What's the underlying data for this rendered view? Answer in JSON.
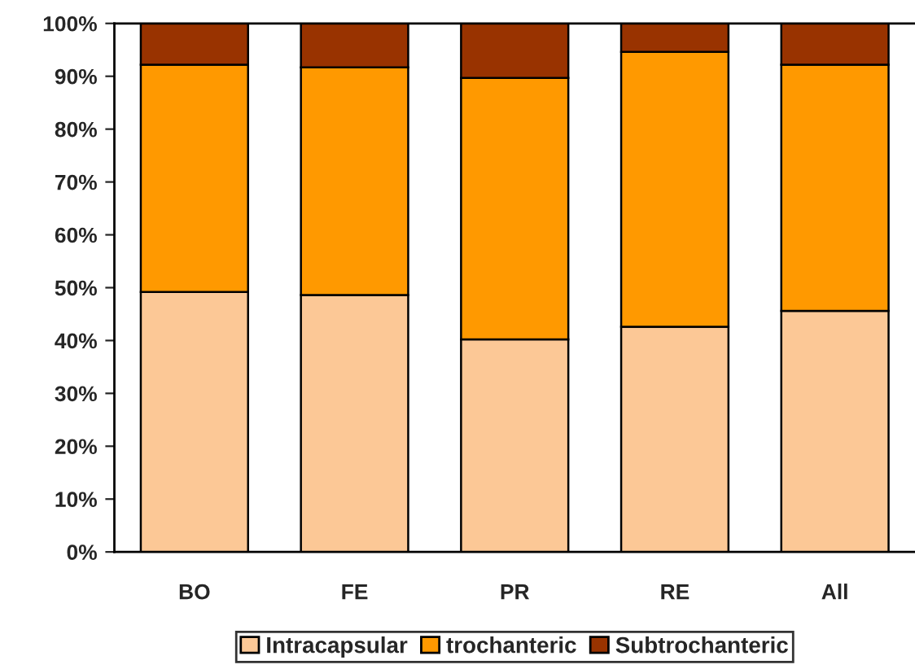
{
  "chart_data": {
    "type": "bar",
    "stacked": true,
    "categories": [
      "BO",
      "FE",
      "PR",
      "RE",
      "All"
    ],
    "series": [
      {
        "name": "Intracapsular",
        "color": "#fcc896",
        "values": [
          49.2,
          48.6,
          40.2,
          42.6,
          45.6
        ]
      },
      {
        "name": "trochanteric",
        "color": "#ff9900",
        "values": [
          43.0,
          43.1,
          49.5,
          52.0,
          46.6
        ]
      },
      {
        "name": "Subtrochanteric",
        "color": "#993300",
        "values": [
          7.8,
          8.3,
          10.3,
          5.4,
          7.8
        ]
      }
    ],
    "ylim": [
      0,
      100
    ],
    "yticks": [
      {
        "value": 0,
        "label": "0%"
      },
      {
        "value": 10,
        "label": "10%"
      },
      {
        "value": 20,
        "label": "20%"
      },
      {
        "value": 30,
        "label": "30%"
      },
      {
        "value": 40,
        "label": "40%"
      },
      {
        "value": 50,
        "label": "50%"
      },
      {
        "value": 60,
        "label": "60%"
      },
      {
        "value": 70,
        "label": "70%"
      },
      {
        "value": 80,
        "label": "80%"
      },
      {
        "value": 90,
        "label": "90%"
      },
      {
        "value": 100,
        "label": "100%"
      }
    ],
    "grid": false,
    "legend": "bottom"
  }
}
